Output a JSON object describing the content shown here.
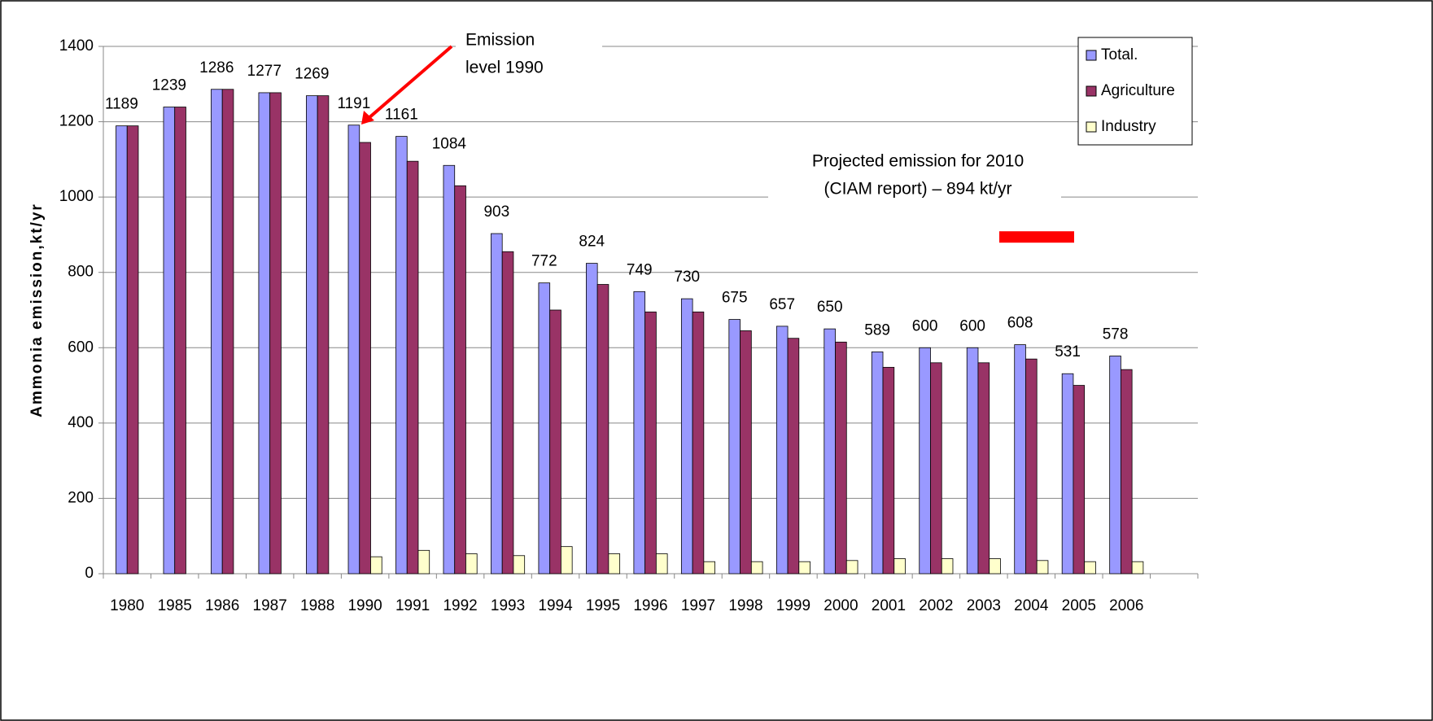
{
  "chart_data": {
    "type": "bar",
    "y_label": "Ammonia emission,kt/yr",
    "categories": [
      "1980",
      "1985",
      "1986",
      "1987",
      "1988",
      "1990",
      "1991",
      "1992",
      "1993",
      "1994",
      "1995",
      "1996",
      "1997",
      "1998",
      "1999",
      "2000",
      "2001",
      "2002",
      "2003",
      "2004",
      "2005",
      "2006",
      null
    ],
    "series": [
      {
        "name": "Total.",
        "color": "#9999ff",
        "values": [
          1189,
          1239,
          1286,
          1277,
          1269,
          1191,
          1161,
          1084,
          903,
          772,
          824,
          749,
          730,
          675,
          657,
          650,
          589,
          600,
          600,
          608,
          531,
          578,
          null
        ]
      },
      {
        "name": "Agriculture",
        "color": "#993366",
        "values": [
          1189,
          1239,
          1286,
          1277,
          1269,
          1145,
          1095,
          1030,
          855,
          700,
          768,
          695,
          695,
          645,
          625,
          615,
          548,
          560,
          560,
          570,
          500,
          542,
          null
        ]
      },
      {
        "name": "Industry",
        "color": "#ffffcc",
        "values": [
          null,
          null,
          null,
          null,
          null,
          45,
          62,
          53,
          48,
          72,
          53,
          53,
          32,
          32,
          32,
          35,
          40,
          40,
          40,
          35,
          32,
          32,
          null
        ]
      }
    ],
    "data_labels_series": 0,
    "ylim": [
      0,
      1400
    ],
    "yticks": [
      0,
      200,
      400,
      600,
      800,
      1000,
      1200,
      1400
    ],
    "grid": true,
    "legend": "upper right",
    "annotations": [
      {
        "lines": [
          "Emission",
          "level 1990"
        ],
        "color": "#ff0000"
      },
      {
        "lines": [
          "Projected emission for 2010",
          "(CIAM report) – 894 kt/yr"
        ],
        "value": 894,
        "color": "#ff0000"
      }
    ]
  }
}
